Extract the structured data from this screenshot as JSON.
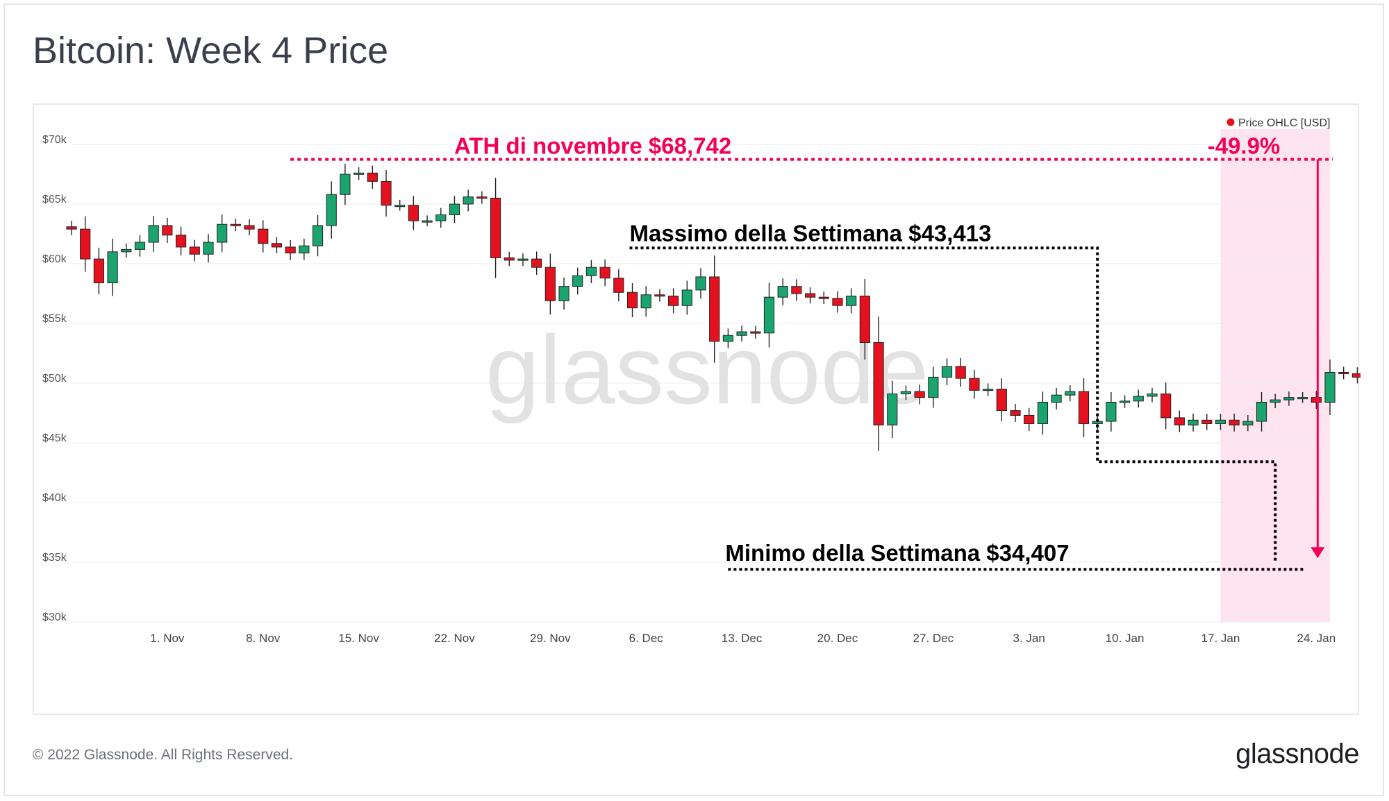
{
  "title": "Bitcoin: Week 4 Price",
  "footer": {
    "copyright": "© 2022 Glassnode. All Rights Reserved.",
    "logo_text": "glassnode"
  },
  "watermark": "glassnode",
  "colors": {
    "up": "#1aa56e",
    "down": "#e6111f",
    "highlight": "#f50057",
    "band": "#fde4ee",
    "dotted": "#000000"
  },
  "legend": {
    "label": "Price OHLC [USD]",
    "color": "#e6111f"
  },
  "annotations": {
    "ath": "ATH di novembre $68,742",
    "change": "-49.9%",
    "week_high": "Massimo della Settimana $43,413",
    "week_low": "Minimo della Settimana $34,407"
  },
  "chart_data": {
    "type": "candlestick",
    "title": "Bitcoin: Week 4 Price",
    "series_name": "Price OHLC [USD]",
    "x_ticks": [
      "1. Nov",
      "8. Nov",
      "15. Nov",
      "22. Nov",
      "29. Nov",
      "6. Dec",
      "13. Dec",
      "20. Dec",
      "27. Dec",
      "3. Jan",
      "10. Jan",
      "17. Jan",
      "24. Jan"
    ],
    "y_ticks": [
      "$30k",
      "$35k",
      "$40k",
      "$45k",
      "$50k",
      "$55k",
      "$60k",
      "$65k",
      "$70k"
    ],
    "ylim": [
      30000,
      70000
    ],
    "xlim": [
      "2021-10-25",
      "2022-01-25"
    ],
    "grid": true,
    "legend_position": "top-right",
    "highlight_range": [
      "2022-01-17",
      "2022-01-25"
    ],
    "reference_lines": {
      "ath": 68742,
      "week_high": 43413,
      "week_low": 34407
    },
    "close": [
      62900,
      60400,
      58400,
      61000,
      61200,
      61800,
      63200,
      62400,
      61400,
      60800,
      61800,
      63300,
      63200,
      62900,
      61700,
      61400,
      60900,
      61500,
      63200,
      65800,
      67500,
      67600,
      66900,
      64900,
      64900,
      63600,
      63600,
      64100,
      65000,
      65600,
      65500,
      60500,
      60300,
      60400,
      59700,
      56900,
      58100,
      59000,
      59700,
      58800,
      57600,
      56300,
      57400,
      57300,
      56500,
      57800,
      58900,
      53500,
      54000,
      54300,
      54200,
      57200,
      58100,
      57500,
      57200,
      57100,
      56500,
      57300,
      53400,
      46500,
      49100,
      49300,
      48800,
      50500,
      51400,
      50400,
      49400,
      49500,
      47700,
      47300,
      46600,
      48400,
      49000,
      49300,
      46600,
      46800,
      48400,
      48500,
      48900,
      49100,
      47100,
      46500,
      46900,
      46600,
      46900,
      46500,
      46800,
      48400,
      48600,
      48800,
      48800,
      48400,
      50900,
      50800,
      50500,
      50800,
      50600,
      50000,
      50000,
      51000,
      50700,
      47600,
      46400,
      47300,
      46300,
      47000,
      47500,
      46400,
      47400,
      47200,
      47000,
      47200,
      46900,
      45900,
      45500,
      43200,
      43100,
      41700,
      41900,
      42000,
      41700,
      41700,
      41800,
      42700,
      43900,
      43100,
      42200,
      43200,
      43100,
      43100,
      42900,
      41900,
      41800,
      41900,
      41600,
      40900,
      39700,
      36700,
      35000,
      34900,
      36300,
      36300
    ]
  }
}
